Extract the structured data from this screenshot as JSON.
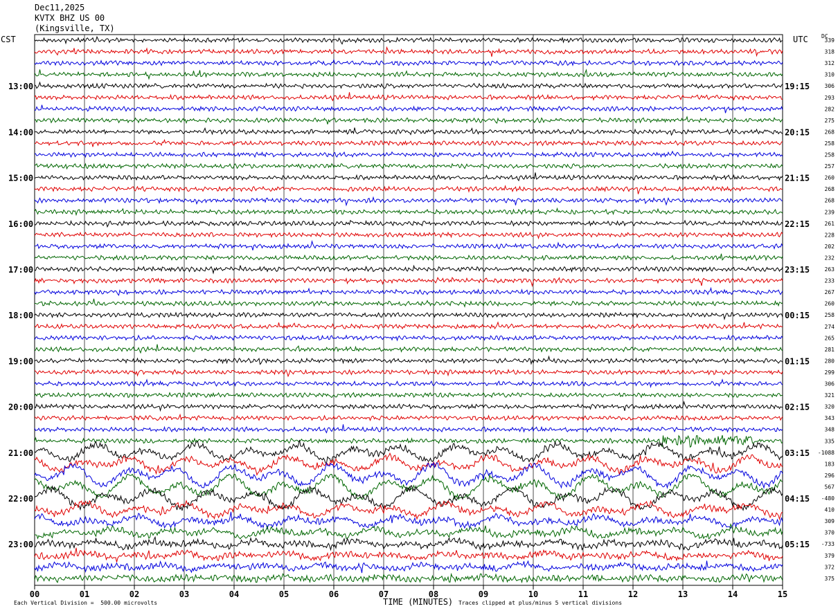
{
  "header": {
    "date": "Dec11,2025",
    "station": "KVTX BHZ US 00",
    "location": "(Kingsville, TX)"
  },
  "labels": {
    "left_timezone": "CST",
    "right_timezone": "UTC",
    "dc_label": "DC",
    "xlabel": "TIME (MINUTES)",
    "scale_note": "Each Vertical Division =  500.00 microvolts",
    "clip_note": "Traces clipped at plus/minus 5 vertical divisions"
  },
  "colors": {
    "trace_cycle": [
      "#000000",
      "#e00000",
      "#0000dd",
      "#006600"
    ],
    "grid": "#000000"
  },
  "chart_data": {
    "type": "line",
    "xlabel": "TIME (MINUTES)",
    "x_ticks": [
      "00",
      "01",
      "02",
      "03",
      "04",
      "05",
      "06",
      "07",
      "08",
      "09",
      "10",
      "11",
      "12",
      "13",
      "14",
      "15"
    ],
    "xlim": [
      0,
      15
    ],
    "trace_count": 48,
    "traces_per_hour": 4,
    "left_hour_labels": [
      "13:00",
      "14:00",
      "15:00",
      "16:00",
      "17:00",
      "18:00",
      "19:00",
      "20:00",
      "21:00",
      "22:00",
      "23:00"
    ],
    "right_hour_labels": [
      "19:15",
      "20:15",
      "21:15",
      "22:15",
      "23:15",
      "00:15",
      "01:15",
      "02:15",
      "03:15",
      "04:15",
      "05:15"
    ],
    "dc_offsets": [
      "339",
      "318",
      "312",
      "310",
      "306",
      "293",
      "282",
      "275",
      "268",
      "258",
      "258",
      "257",
      "260",
      "268",
      "268",
      "239",
      "261",
      "228",
      "202",
      "232",
      "263",
      "233",
      "267",
      "260",
      "258",
      "274",
      "265",
      "281",
      "280",
      "299",
      "306",
      "321",
      "320",
      "343",
      "348",
      "335",
      "-1088",
      "183",
      "296",
      "567",
      "-480",
      "410",
      "309",
      "370",
      "-733",
      "379",
      "372",
      "375"
    ]
  }
}
